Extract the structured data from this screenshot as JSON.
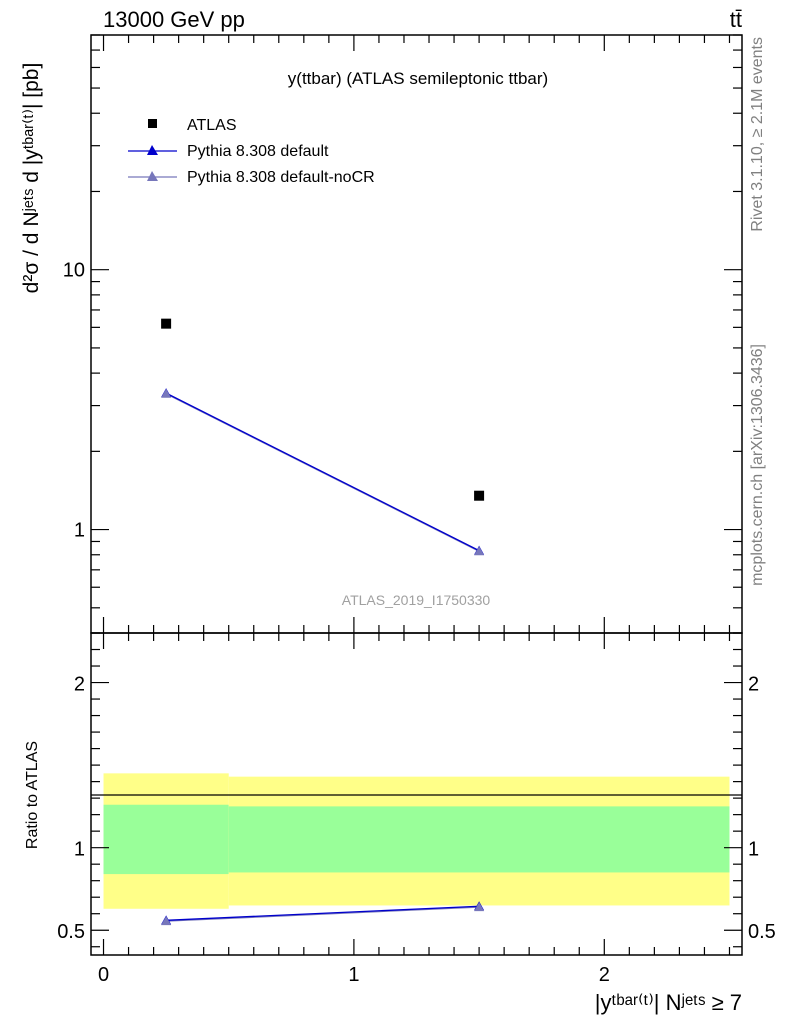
{
  "header": {
    "left": "13000 GeV pp",
    "right": "tt̄"
  },
  "side_text": {
    "rivet": "Rivet 3.1.10, ≥ 2.1M events",
    "mcplots": "mcplots.cern.ch [arXiv:1306.3436]"
  },
  "watermark": "ATLAS_2019_I1750330",
  "colors": {
    "atlas": "#000000",
    "default": "#0000cc",
    "nocr": "#7777bb",
    "band_inner": "#99ff99",
    "band_outer": "#ffff88"
  },
  "chart_data": [
    {
      "type": "scatter",
      "title": "y(ttbar) (ATLAS semileptonic ttbar)",
      "ylabel": "d²σ / d Nʲᵉᵗˢ d |yᵗᵇᵃʳ⁽ᵗ⁾| [pb]",
      "yscale": "log",
      "ylim": [
        0.4,
        80
      ],
      "xlim": [
        -0.05,
        2.55
      ],
      "yticks": [
        {
          "value": 1,
          "label": "1"
        },
        {
          "value": 10,
          "label": "10"
        }
      ],
      "legend_position": "top-left",
      "series": [
        {
          "name": "ATLAS",
          "marker": "square",
          "x": [
            0.25,
            1.5
          ],
          "y": [
            6.2,
            1.35
          ]
        },
        {
          "name": "Pythia 8.308 default",
          "marker": "triangle",
          "x": [
            0.25,
            1.5
          ],
          "y": [
            3.35,
            0.83
          ]
        },
        {
          "name": "Pythia 8.308 default-noCR",
          "marker": "triangle",
          "x": [
            0.25,
            1.5
          ],
          "y": [
            3.33,
            0.825
          ]
        }
      ]
    },
    {
      "type": "line",
      "ylabel": "Ratio to ATLAS",
      "xlabel": "|yᵗᵇᵃʳ⁽ᵗ⁾| Nʲᵉᵗˢ ≥ 7",
      "xlim": [
        -0.05,
        2.55
      ],
      "ylim": [
        0.35,
        2.3
      ],
      "xticks": [
        {
          "value": 0,
          "label": "0"
        },
        {
          "value": 1,
          "label": "1"
        },
        {
          "value": 2,
          "label": "2"
        }
      ],
      "yticks": [
        {
          "value": 0.5,
          "label": "0.5"
        },
        {
          "value": 1,
          "label": "1"
        },
        {
          "value": 2,
          "label": "2"
        }
      ],
      "bins": [
        {
          "xlo": 0,
          "xhi": 0.5,
          "inner": [
            0.84,
            1.26
          ],
          "outer": [
            0.63,
            1.45
          ]
        },
        {
          "xlo": 0.5,
          "xhi": 2.5,
          "inner": [
            0.85,
            1.25
          ],
          "outer": [
            0.65,
            1.43
          ]
        }
      ],
      "series": [
        {
          "name": "Pythia 8.308 default",
          "x": [
            0.25,
            1.5
          ],
          "y": [
            0.56,
            0.645
          ]
        },
        {
          "name": "Pythia 8.308 default-noCR",
          "x": [
            0.25,
            1.5
          ],
          "y": [
            0.555,
            0.64
          ]
        }
      ]
    }
  ]
}
